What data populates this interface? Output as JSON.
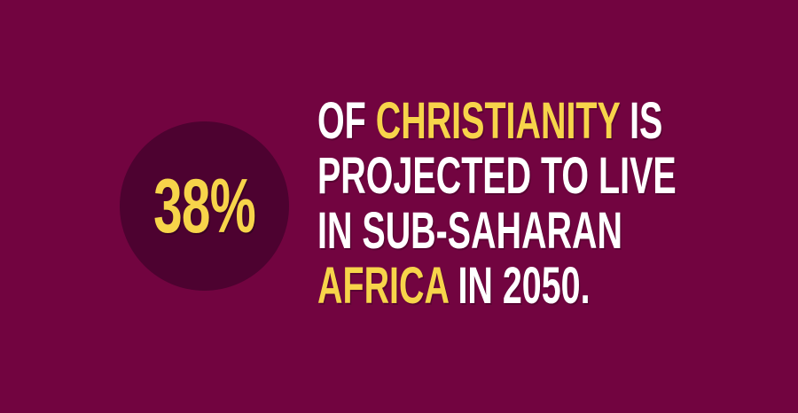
{
  "stat": {
    "value": "38%"
  },
  "statement": {
    "line1": {
      "pre": "OF ",
      "highlight": "CHRISTIANITY",
      "post": " IS"
    },
    "line2": {
      "text": "PROJECTED TO LIVE"
    },
    "line3": {
      "text": "IN SUB-SAHARAN"
    },
    "line4": {
      "highlight": "AFRICA",
      "post": " IN 2050."
    }
  },
  "colors": {
    "background": "#720440",
    "circle": "#4d0230",
    "accent": "#f7d44a",
    "text": "#ffffff"
  }
}
